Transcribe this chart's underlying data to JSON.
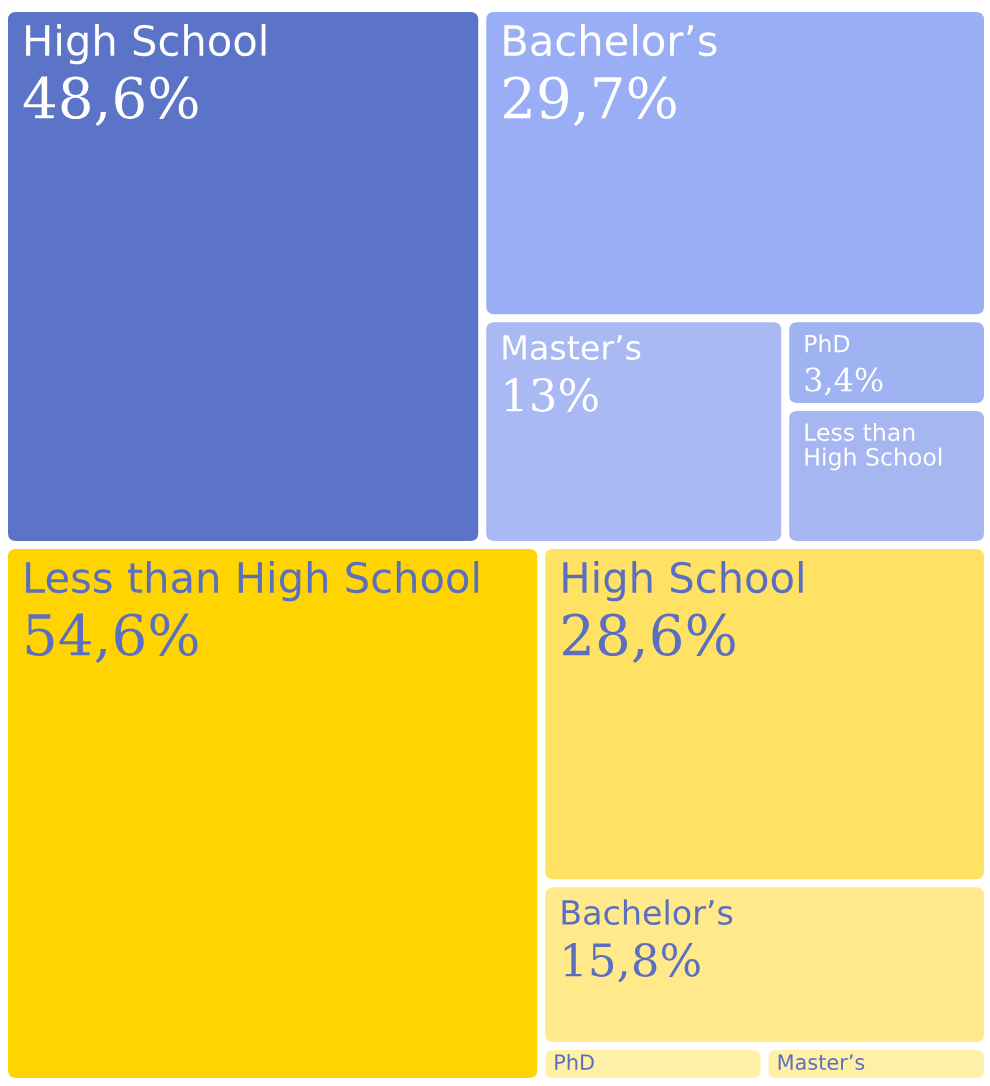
{
  "chart_data": [
    {
      "type": "other",
      "categories": [
        "High School",
        "Bachelor’s",
        "Master’s",
        "PhD",
        "Less than High School"
      ],
      "values": [
        48.6,
        29.7,
        13,
        3.4,
        null
      ],
      "value_labels": [
        "48,6%",
        "29,7%",
        "13%",
        "3,4%",
        null
      ],
      "colors": [
        "#5b74c7",
        "#9aaef5",
        "#a9b9f3",
        "#9fb2f2",
        "#a5b6f0"
      ]
    },
    {
      "type": "other",
      "categories": [
        "Less than High School",
        "High School",
        "Bachelor’s",
        "PhD",
        "Master’s"
      ],
      "values": [
        54.6,
        28.6,
        15.8,
        null,
        null
      ],
      "value_labels": [
        "54,6%",
        "28,6%",
        "15,8%",
        null,
        null
      ],
      "colors": [
        "#ffd400",
        "#ffe164",
        "#ffe98a",
        "#fff0a8",
        "#fff0a8"
      ]
    }
  ]
}
